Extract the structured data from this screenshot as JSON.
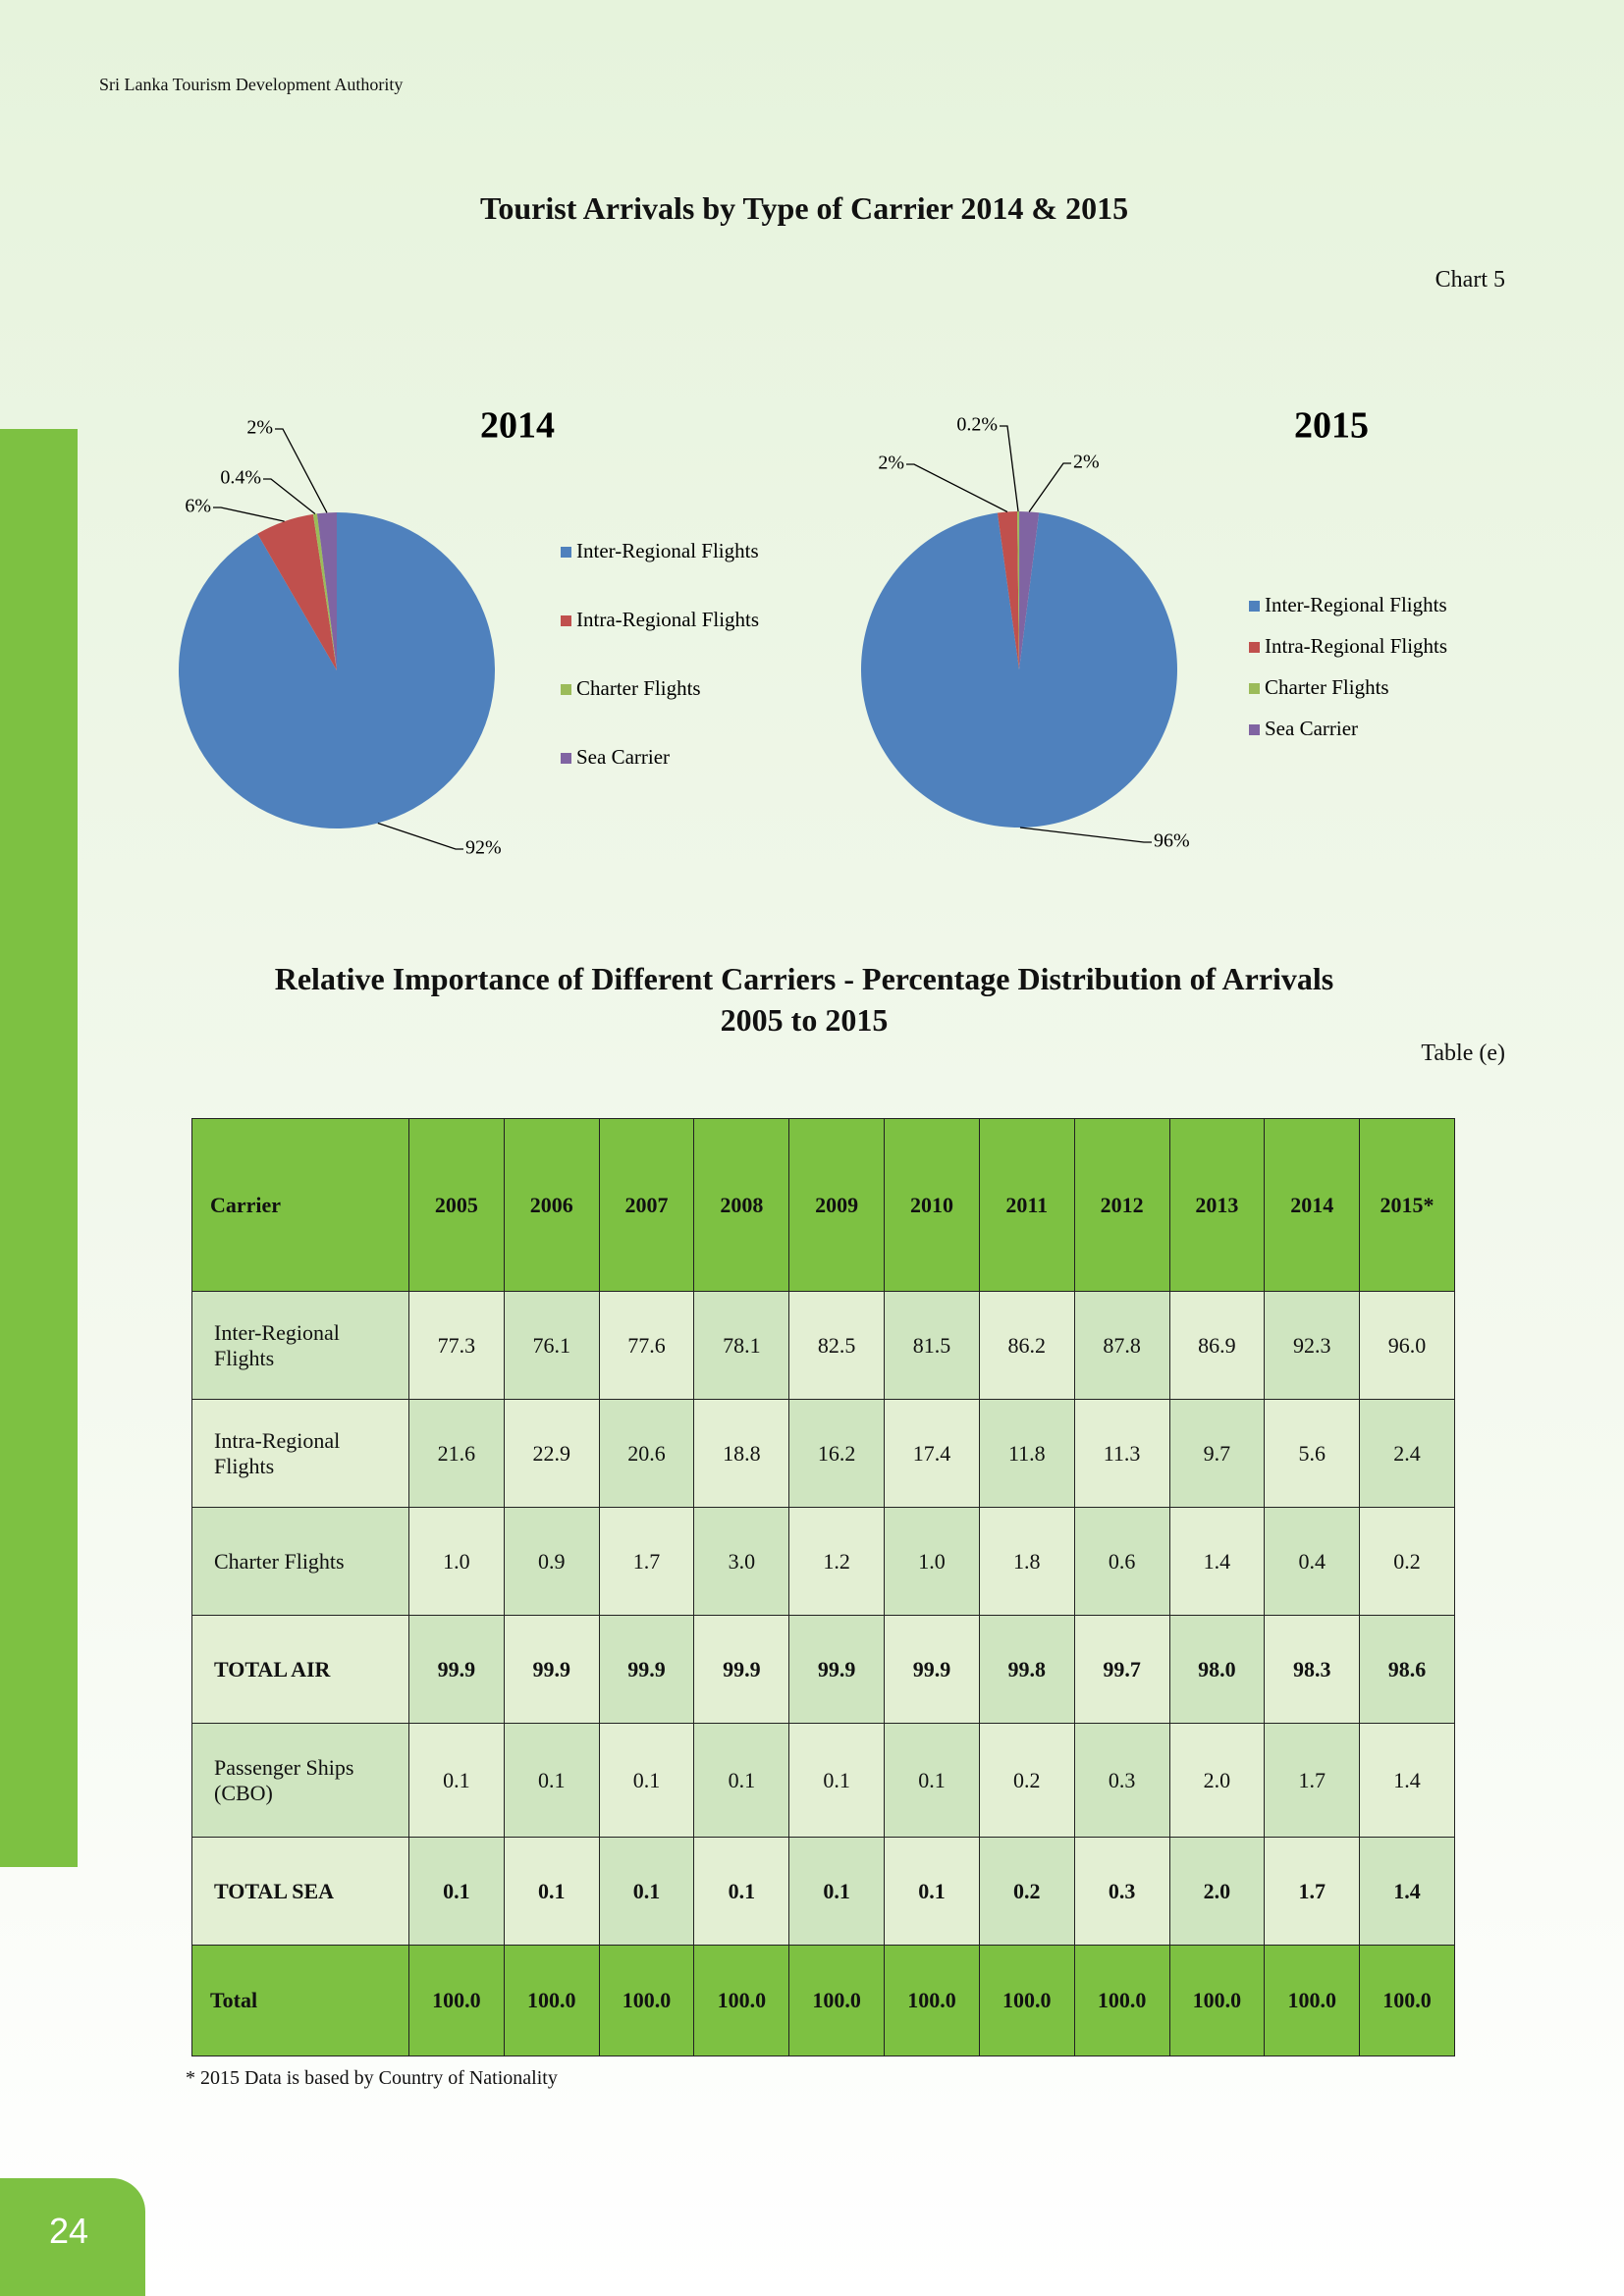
{
  "header": "Sri Lanka Tourism Development Authority",
  "chart_section": {
    "title": "Tourist Arrivals by Type of Carrier 2014 & 2015",
    "label": "Chart 5"
  },
  "chart_data": [
    {
      "type": "pie",
      "title": "2014",
      "categories": [
        "Inter-Regional Flights",
        "Intra-Regional Flights",
        "Charter Flights",
        "Sea Carrier"
      ],
      "values": [
        92,
        6,
        0.4,
        2
      ],
      "value_labels": [
        "92%",
        "6%",
        "0.4%",
        "2%"
      ],
      "colors": [
        "#4f81bd",
        "#c0504d",
        "#9bbb59",
        "#8064a2"
      ]
    },
    {
      "type": "pie",
      "title": "2015",
      "categories": [
        "Inter-Regional Flights",
        "Intra-Regional Flights",
        "Charter Flights",
        "Sea Carrier"
      ],
      "values": [
        96,
        2,
        0.2,
        2
      ],
      "value_labels": [
        "96%",
        "2%",
        "0.2%",
        "2%"
      ],
      "colors": [
        "#4f81bd",
        "#c0504d",
        "#9bbb59",
        "#8064a2"
      ]
    }
  ],
  "table_section": {
    "title_line1": "Relative Importance of Different Carriers - Percentage Distribution of Arrivals",
    "title_line2": "2005 to 2015",
    "label": "Table (e)"
  },
  "table": {
    "header": [
      "Carrier",
      "2005",
      "2006",
      "2007",
      "2008",
      "2009",
      "2010",
      "2011",
      "2012",
      "2013",
      "2014",
      "2015*"
    ],
    "rows": [
      [
        "Inter-Regional Flights",
        "77.3",
        "76.1",
        "77.6",
        "78.1",
        "82.5",
        "81.5",
        "86.2",
        "87.8",
        "86.9",
        "92.3",
        "96.0"
      ],
      [
        "Intra-Regional Flights",
        "21.6",
        "22.9",
        "20.6",
        "18.8",
        "16.2",
        "17.4",
        "11.8",
        "11.3",
        "9.7",
        "5.6",
        "2.4"
      ],
      [
        "Charter Flights",
        "1.0",
        "0.9",
        "1.7",
        "3.0",
        "1.2",
        "1.0",
        "1.8",
        "0.6",
        "1.4",
        "0.4",
        "0.2"
      ],
      [
        "TOTAL AIR",
        "99.9",
        "99.9",
        "99.9",
        "99.9",
        "99.9",
        "99.9",
        "99.8",
        "99.7",
        "98.0",
        "98.3",
        "98.6"
      ],
      [
        "Passenger Ships (CBO)",
        "0.1",
        "0.1",
        "0.1",
        "0.1",
        "0.1",
        "0.1",
        "0.2",
        "0.3",
        "2.0",
        "1.7",
        "1.4"
      ],
      [
        "TOTAL SEA",
        "0.1",
        "0.1",
        "0.1",
        "0.1",
        "0.1",
        "0.1",
        "0.2",
        "0.3",
        "2.0",
        "1.7",
        "1.4"
      ]
    ],
    "total": [
      "Total",
      "100.0",
      "100.0",
      "100.0",
      "100.0",
      "100.0",
      "100.0",
      "100.0",
      "100.0",
      "100.0",
      "100.0",
      "100.0"
    ]
  },
  "footnote": "* 2015 Data is based by Country of Nationality",
  "page_number": "24"
}
